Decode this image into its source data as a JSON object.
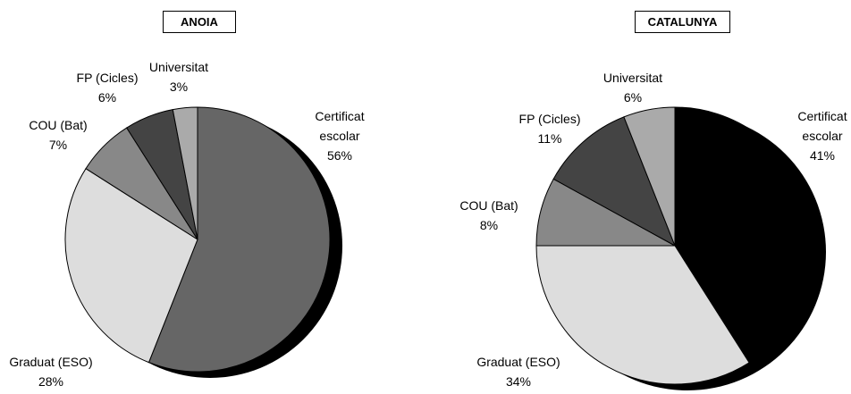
{
  "chart_data": [
    {
      "type": "pie",
      "title": "ANOIA",
      "categories": [
        "Certificat escolar",
        "Graduat (ESO)",
        "COU (Bat)",
        "FP (Cicles)",
        "Universitat"
      ],
      "values": [
        56,
        28,
        7,
        6,
        3
      ],
      "value_labels": [
        "56%",
        "28%",
        "7%",
        "6%",
        "3%"
      ],
      "colors": [
        "#666666",
        "#dddddd",
        "#888888",
        "#444444",
        "#aaaaaa"
      ]
    },
    {
      "type": "pie",
      "title": "CATALUNYA",
      "categories": [
        "Certificat escolar",
        "Graduat (ESO)",
        "COU (Bat)",
        "FP (Cicles)",
        "Universitat"
      ],
      "values": [
        41,
        34,
        8,
        11,
        6
      ],
      "value_labels": [
        "41%",
        "34%",
        "8%",
        "11%",
        "6%"
      ],
      "colors": [
        "#000000",
        "#dddddd",
        "#888888",
        "#444444",
        "#aaaaaa"
      ]
    }
  ]
}
